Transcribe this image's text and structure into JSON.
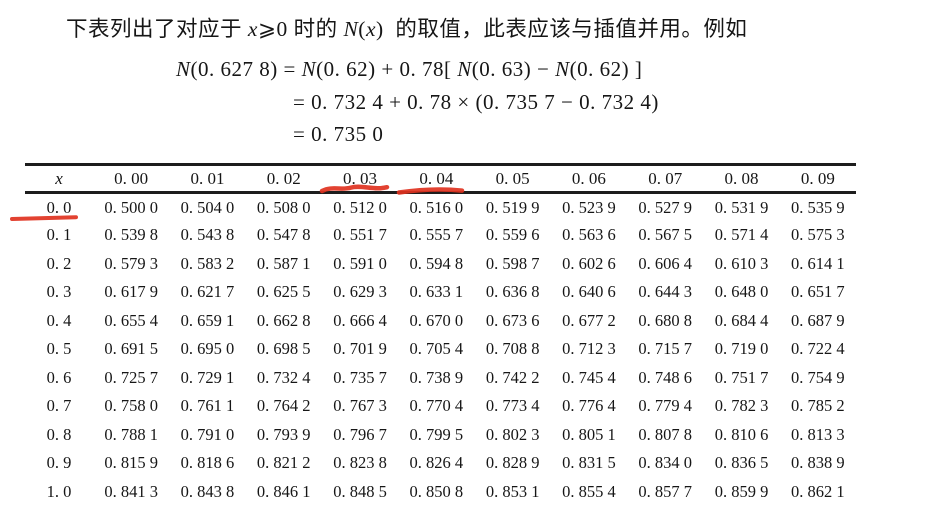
{
  "colors": {
    "ink": "#161616",
    "annotation_red": "#e0321f",
    "paper": "#ffffff"
  },
  "intro": {
    "segments": [
      {
        "text": "下表列出了对应于 "
      },
      {
        "text": "x",
        "italic": true
      },
      {
        "text": "⩾0 时的 "
      },
      {
        "text": "N",
        "italic": true
      },
      {
        "text": "("
      },
      {
        "text": "x",
        "italic": true
      },
      {
        "text": ")  的取值，此表应该与插值并用。例如"
      }
    ]
  },
  "formula": {
    "line1": [
      {
        "text": "N",
        "italic": true
      },
      {
        "text": "(0. 627 8) = "
      },
      {
        "text": "N",
        "italic": true
      },
      {
        "text": "(0. 62) + 0. 78[ "
      },
      {
        "text": "N",
        "italic": true
      },
      {
        "text": "(0. 63) − "
      },
      {
        "text": "N",
        "italic": true
      },
      {
        "text": "(0. 62) ]"
      }
    ],
    "line2": [
      {
        "text": "= 0. 732 4 + 0. 78 × (0. 735 7 − 0. 732 4)"
      }
    ],
    "line3": [
      {
        "text": "= 0. 735 0"
      }
    ]
  },
  "table": {
    "corner_label": "x",
    "col_headers": [
      "0. 00",
      "0. 01",
      "0. 02",
      "0. 03",
      "0. 04",
      "0. 05",
      "0. 06",
      "0. 07",
      "0. 08",
      "0. 09"
    ],
    "rows": [
      {
        "label": "0. 0",
        "values": [
          "0. 500 0",
          "0. 504 0",
          "0. 508 0",
          "0. 512 0",
          "0. 516 0",
          "0. 519 9",
          "0. 523 9",
          "0. 527 9",
          "0. 531 9",
          "0. 535 9"
        ]
      },
      {
        "label": "0. 1",
        "values": [
          "0. 539 8",
          "0. 543 8",
          "0. 547 8",
          "0. 551 7",
          "0. 555 7",
          "0. 559 6",
          "0. 563 6",
          "0. 567 5",
          "0. 571 4",
          "0. 575 3"
        ]
      },
      {
        "label": "0. 2",
        "values": [
          "0. 579 3",
          "0. 583 2",
          "0. 587 1",
          "0. 591 0",
          "0. 594 8",
          "0. 598 7",
          "0. 602 6",
          "0. 606 4",
          "0. 610 3",
          "0. 614 1"
        ]
      },
      {
        "label": "0. 3",
        "values": [
          "0. 617 9",
          "0. 621 7",
          "0. 625 5",
          "0. 629 3",
          "0. 633 1",
          "0. 636 8",
          "0. 640 6",
          "0. 644 3",
          "0. 648 0",
          "0. 651 7"
        ]
      },
      {
        "label": "0. 4",
        "values": [
          "0. 655 4",
          "0. 659 1",
          "0. 662 8",
          "0. 666 4",
          "0. 670 0",
          "0. 673 6",
          "0. 677 2",
          "0. 680 8",
          "0. 684 4",
          "0. 687 9"
        ]
      },
      {
        "label": "0. 5",
        "values": [
          "0. 691 5",
          "0. 695 0",
          "0. 698 5",
          "0. 701 9",
          "0. 705 4",
          "0. 708 8",
          "0. 712 3",
          "0. 715 7",
          "0. 719 0",
          "0. 722 4"
        ]
      },
      {
        "label": "0. 6",
        "values": [
          "0. 725 7",
          "0. 729 1",
          "0. 732 4",
          "0. 735 7",
          "0. 738 9",
          "0. 742 2",
          "0. 745 4",
          "0. 748 6",
          "0. 751 7",
          "0. 754 9"
        ]
      },
      {
        "label": "0. 7",
        "values": [
          "0. 758 0",
          "0. 761 1",
          "0. 764 2",
          "0. 767 3",
          "0. 770 4",
          "0. 773 4",
          "0. 776 4",
          "0. 779 4",
          "0. 782 3",
          "0. 785 2"
        ]
      },
      {
        "label": "0. 8",
        "values": [
          "0. 788 1",
          "0. 791 0",
          "0. 793 9",
          "0. 796 7",
          "0. 799 5",
          "0. 802 3",
          "0. 805 1",
          "0. 807 8",
          "0. 810 6",
          "0. 813 3"
        ]
      },
      {
        "label": "0. 9",
        "values": [
          "0. 815 9",
          "0. 818 6",
          "0. 821 2",
          "0. 823 8",
          "0. 826 4",
          "0. 828 9",
          "0. 831 5",
          "0. 834 0",
          "0. 836 5",
          "0. 838 9"
        ]
      },
      {
        "label": "1. 0",
        "values": [
          "0. 841 3",
          "0. 843 8",
          "0. 846 1",
          "0. 848 5",
          "0. 850 8",
          "0. 853 1",
          "0. 855 4",
          "0. 857 7",
          "0. 859 9",
          "0. 862 1"
        ]
      }
    ]
  },
  "annotations": {
    "color": "#e0321f",
    "marks": [
      {
        "name": "red-underline-col-header-0.03",
        "style": "wavy"
      },
      {
        "name": "red-underline-col-header-0.04",
        "style": "straight"
      },
      {
        "name": "red-underline-row-label-0.0",
        "style": "straight"
      }
    ]
  }
}
